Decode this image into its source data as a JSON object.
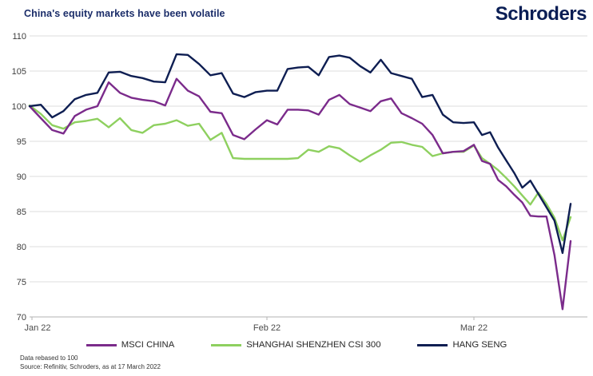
{
  "header": {
    "title": "China's equity markets have been volatile",
    "logo_text": "Schroders"
  },
  "chart_data": {
    "type": "line",
    "title": "China's equity markets have been volatile",
    "grid": true,
    "legend_position": "bottom",
    "ylim": [
      70,
      110
    ],
    "y_ticks": [
      70,
      75,
      80,
      85,
      90,
      95,
      100,
      105,
      110
    ],
    "x_ticks": [
      {
        "label": "Jan 22",
        "day": 0
      },
      {
        "label": "Feb 22",
        "day": 21
      },
      {
        "label": "Mar 22",
        "day": 41
      }
    ],
    "colors": {
      "msci_china": "#7b2b8b",
      "csi_300": "#8ed05f",
      "hang_seng": "#0e1e52"
    },
    "series": [
      {
        "name": "MSCI CHINA",
        "color": "#7b2b8b",
        "values": [
          100.0,
          98.3,
          96.6,
          96.1,
          98.6,
          99.5,
          100.0,
          103.4,
          101.9,
          101.2,
          100.9,
          100.7,
          100.1,
          103.9,
          102.2,
          101.4,
          99.2,
          99.0,
          95.9,
          95.3,
          96.7,
          98.0,
          97.4,
          99.5,
          99.5,
          99.4,
          98.8,
          100.9,
          101.6,
          100.3,
          99.8,
          99.3,
          100.7,
          101.1,
          99.0,
          98.3,
          97.5,
          95.9,
          93.3,
          93.5,
          93.6,
          94.5,
          92.2,
          91.8,
          89.5,
          88.6,
          87.4,
          86.3,
          84.4,
          84.3,
          84.3,
          78.8,
          71.1,
          80.8
        ]
      },
      {
        "name": "SHANGHAI SHENZHEN CSI 300",
        "color": "#8ed05f",
        "values": [
          100.1,
          98.9,
          97.3,
          96.8,
          97.7,
          97.9,
          98.2,
          97.0,
          98.3,
          96.6,
          96.2,
          97.3,
          97.5,
          98.0,
          97.2,
          97.5,
          95.2,
          96.2,
          92.6,
          92.5,
          92.5,
          92.5,
          92.5,
          92.5,
          92.6,
          93.8,
          93.5,
          94.3,
          94.0,
          93.0,
          92.1,
          93.0,
          93.8,
          94.8,
          94.9,
          94.5,
          94.2,
          92.9,
          93.3,
          93.5,
          93.5,
          94.4,
          92.6,
          91.8,
          90.9,
          89.8,
          88.6,
          87.3,
          86.0,
          87.7,
          86.1,
          84.1,
          80.9,
          84.2
        ]
      },
      {
        "name": "HANG SENG",
        "color": "#0e1e52",
        "values": [
          100.0,
          100.2,
          98.4,
          99.3,
          101.0,
          101.6,
          101.9,
          104.8,
          104.9,
          104.3,
          104.0,
          103.5,
          103.4,
          107.4,
          107.3,
          106.0,
          104.4,
          104.7,
          101.8,
          101.3,
          102.0,
          102.2,
          102.2,
          105.3,
          105.5,
          105.6,
          104.4,
          107.0,
          107.2,
          106.9,
          105.7,
          104.8,
          106.6,
          104.7,
          104.3,
          103.9,
          101.3,
          101.6,
          98.8,
          97.7,
          97.6,
          97.7,
          95.9,
          96.3,
          94.1,
          92.3,
          90.5,
          88.4,
          89.4,
          87.5,
          85.6,
          83.7,
          79.1,
          86.1
        ]
      }
    ]
  },
  "footer": {
    "note1": "Data rebased to 100",
    "note2": "Source: Refinitiv, Schroders, as at 17 March 2022"
  }
}
